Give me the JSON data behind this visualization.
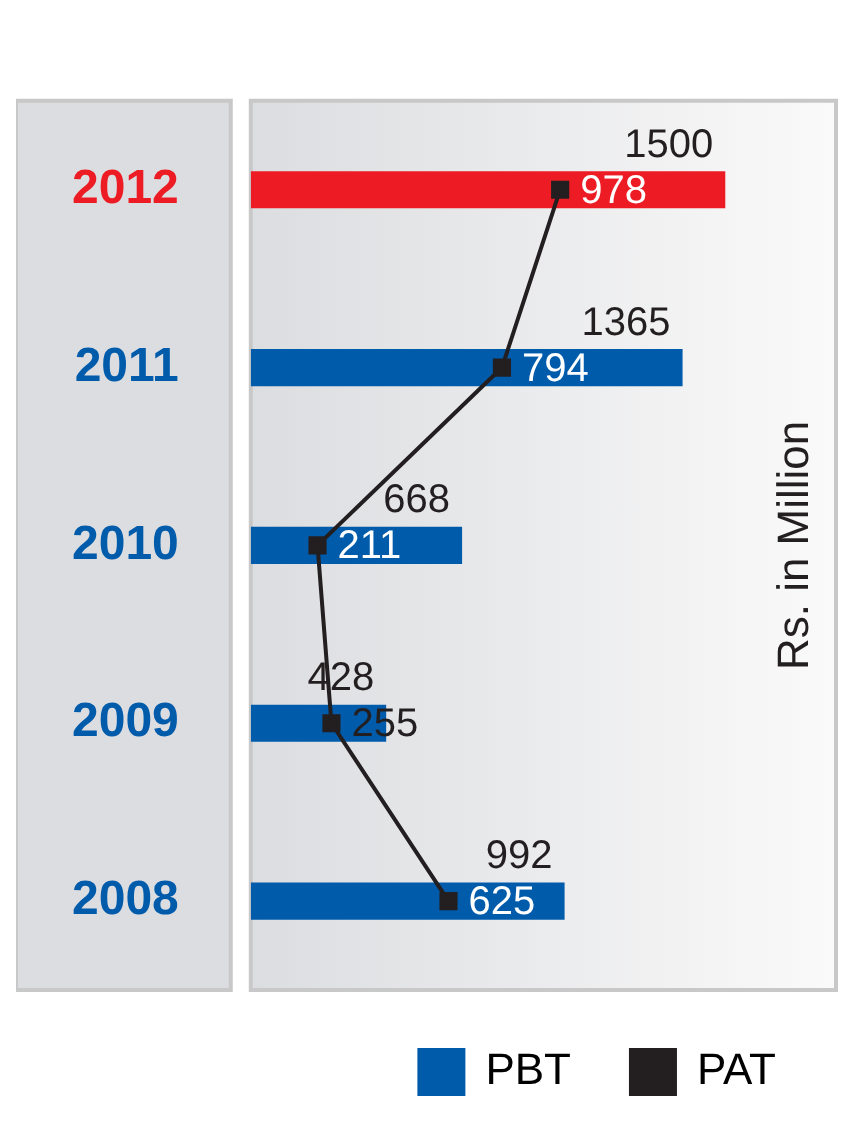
{
  "chart_data": {
    "type": "bar",
    "orientation": "horizontal",
    "ylabel": "Rs. in Million",
    "categories": [
      "2012",
      "2011",
      "2010",
      "2009",
      "2008"
    ],
    "series": [
      {
        "name": "PBT",
        "colors": [
          "#ed1c24",
          "#005bab",
          "#005bab",
          "#005bab",
          "#005bab"
        ],
        "color": "#005bab",
        "values": [
          1500,
          1365,
          668,
          428,
          992
        ]
      },
      {
        "name": "PAT",
        "type": "line",
        "color": "#231f20",
        "marker": "square",
        "values": [
          978,
          794,
          211,
          255,
          625
        ]
      }
    ],
    "xlim": [
      0,
      1850
    ],
    "data_labels": true,
    "legend": "bottom"
  }
}
